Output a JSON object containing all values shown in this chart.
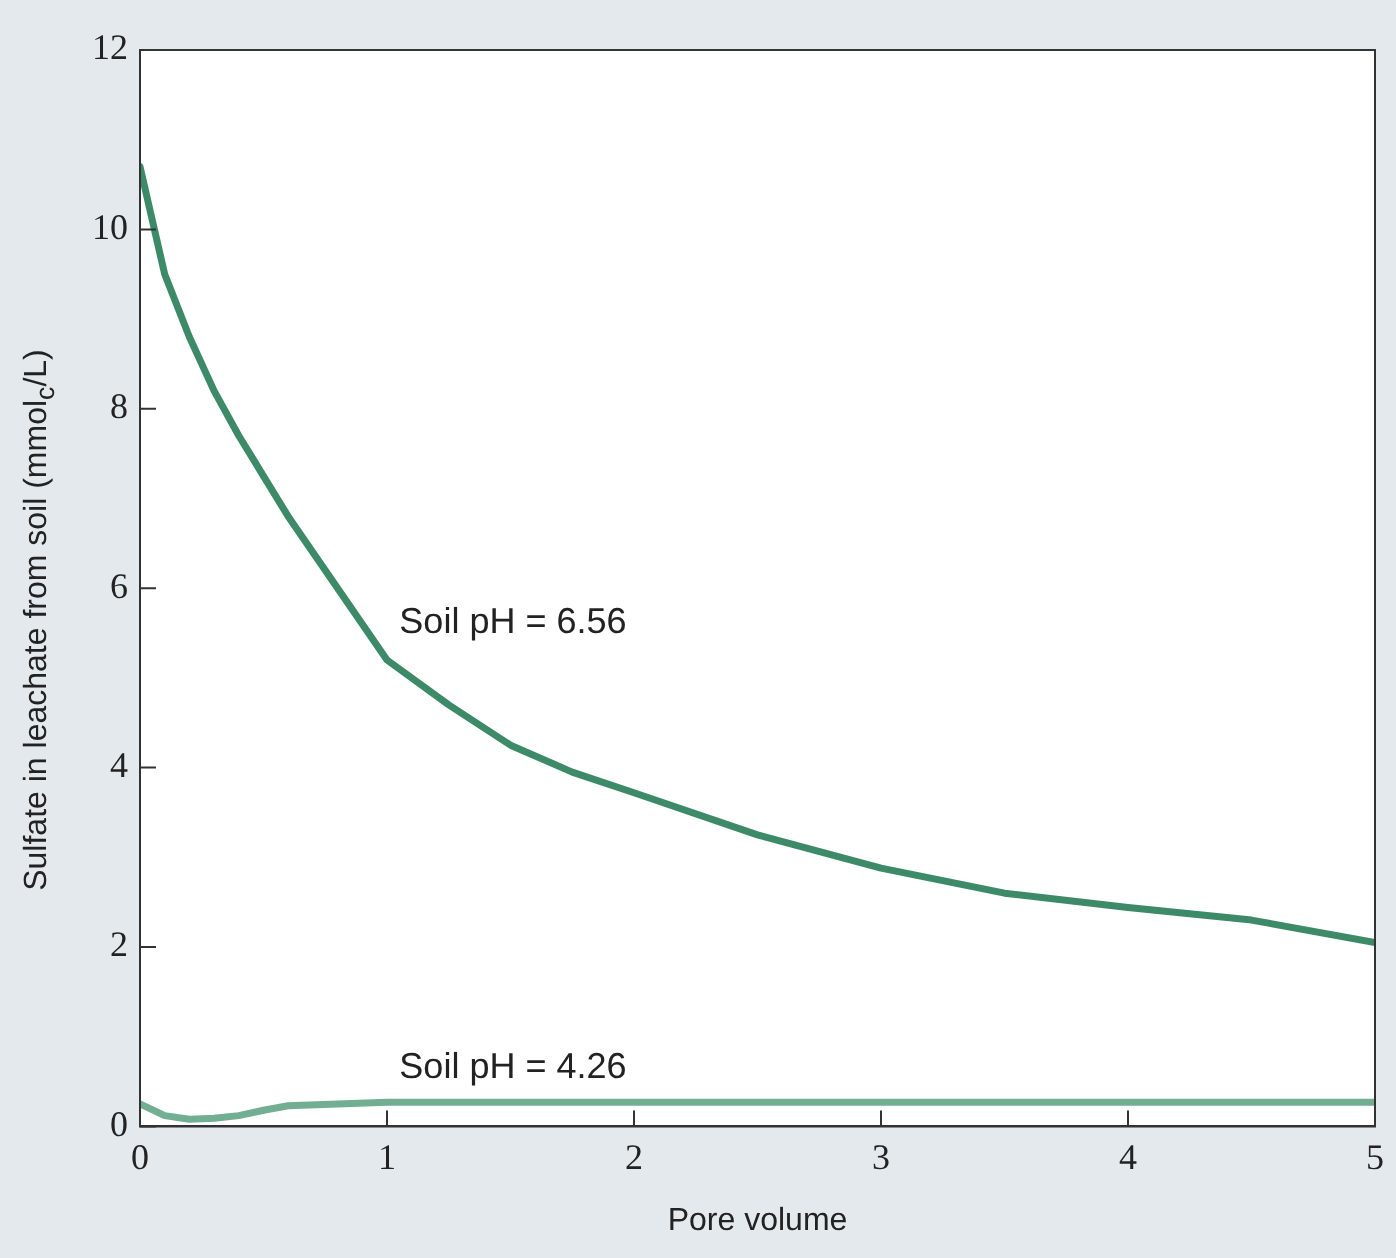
{
  "chart_data": {
    "type": "line",
    "xlabel": "Pore volume",
    "ylabel": "Sulfate in leachate from soil (mmol$_{c}$/L)",
    "xlim": [
      0,
      5
    ],
    "xticks": [
      0,
      1,
      2,
      3,
      4,
      5
    ],
    "ylim": [
      0,
      12
    ],
    "yticks": [
      0,
      2,
      4,
      6,
      8,
      10,
      12
    ],
    "grid": false,
    "legend": false,
    "marker": "none",
    "line_style": "solid",
    "series": [
      {
        "name": "Soil pH = 6.56",
        "color": "#3d8a68",
        "x": [
          0,
          0.05,
          0.1,
          0.2,
          0.3,
          0.4,
          0.5,
          0.6,
          0.8,
          1,
          1.25,
          1.5,
          1.75,
          2,
          2.5,
          3,
          3.5,
          4,
          4.5,
          5
        ],
        "values": [
          10.7,
          10.1,
          9.5,
          8.8,
          8.2,
          7.7,
          7.25,
          6.8,
          6,
          5.2,
          4.7,
          4.25,
          3.95,
          3.72,
          3.25,
          2.88,
          2.6,
          2.44,
          2.3,
          2.05
        ]
      },
      {
        "name": "Soil pH = 4.26",
        "color": "#72ae92",
        "x": [
          0,
          0.1,
          0.2,
          0.3,
          0.4,
          0.5,
          0.6,
          0.8,
          1,
          2,
          3,
          4,
          5
        ],
        "values": [
          0.25,
          0.12,
          0.08,
          0.09,
          0.12,
          0.18,
          0.23,
          0.25,
          0.27,
          0.27,
          0.27,
          0.27,
          0.27
        ]
      }
    ]
  }
}
